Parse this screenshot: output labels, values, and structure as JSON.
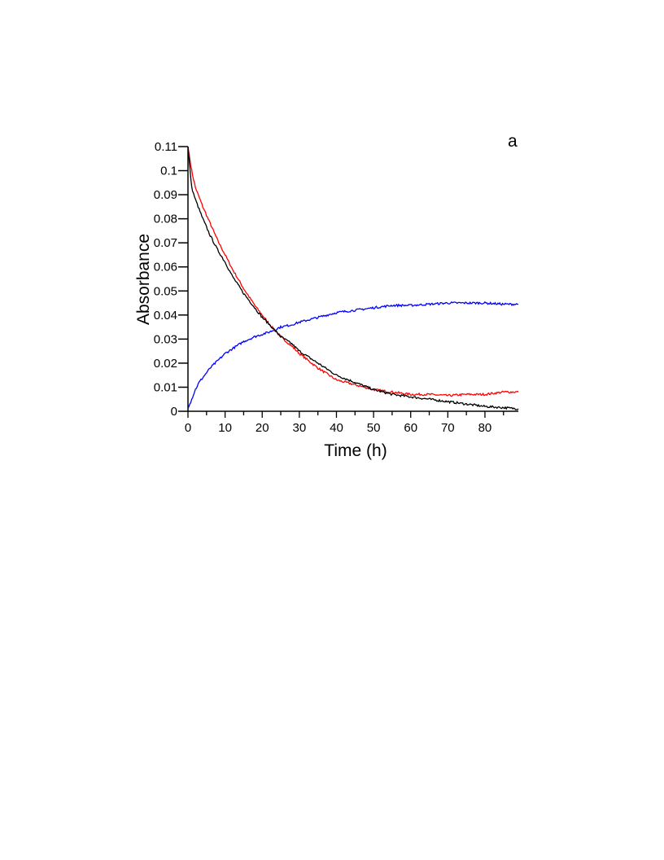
{
  "chart_data": {
    "type": "line",
    "title": "",
    "panel_label": "a",
    "xlabel": "Time (h)",
    "ylabel": "Absorbance",
    "xlim": [
      0,
      89
    ],
    "ylim": [
      0,
      0.11
    ],
    "xticks": [
      0,
      10,
      20,
      30,
      40,
      50,
      60,
      70,
      80
    ],
    "xtick_labels": [
      "0",
      "10",
      "20",
      "30",
      "40",
      "50",
      "60",
      "70",
      "80"
    ],
    "yticks": [
      0,
      0.01,
      0.02,
      0.03,
      0.04,
      0.05,
      0.06,
      0.07,
      0.08,
      0.09,
      0.1,
      0.11
    ],
    "ytick_labels": [
      "0",
      "0.01",
      "0.02",
      "0.03",
      "0.04",
      "0.05",
      "0.06",
      "0.07",
      "0.08",
      "0.09",
      "0.1",
      "0.11"
    ],
    "grid": false,
    "legend": "none",
    "series": [
      {
        "color": "#ff0000",
        "x": [
          0,
          1,
          2,
          4,
          6,
          8,
          10,
          12,
          15,
          18,
          20,
          22,
          25,
          28,
          30,
          35,
          40,
          45,
          50,
          55,
          60,
          65,
          70,
          75,
          80,
          85,
          89
        ],
        "values": [
          0.11,
          0.1,
          0.093,
          0.085,
          0.078,
          0.071,
          0.065,
          0.059,
          0.051,
          0.044,
          0.04,
          0.036,
          0.031,
          0.027,
          0.024,
          0.018,
          0.013,
          0.011,
          0.009,
          0.008,
          0.007,
          0.007,
          0.0065,
          0.007,
          0.007,
          0.008,
          0.008
        ]
      },
      {
        "color": "#000000",
        "x": [
          0,
          1,
          2,
          4,
          6,
          8,
          10,
          12,
          15,
          18,
          20,
          22,
          25,
          28,
          30,
          35,
          40,
          45,
          50,
          55,
          60,
          65,
          70,
          75,
          80,
          85,
          89
        ],
        "values": [
          0.11,
          0.093,
          0.088,
          0.08,
          0.073,
          0.067,
          0.062,
          0.056,
          0.049,
          0.043,
          0.039,
          0.036,
          0.031,
          0.028,
          0.025,
          0.02,
          0.015,
          0.012,
          0.009,
          0.007,
          0.006,
          0.005,
          0.004,
          0.003,
          0.002,
          0.0015,
          0.001
        ]
      },
      {
        "color": "#0000ff",
        "x": [
          0,
          1,
          2,
          3,
          4,
          6,
          8,
          10,
          12,
          15,
          18,
          20,
          22,
          25,
          28,
          30,
          35,
          40,
          45,
          50,
          55,
          60,
          65,
          70,
          75,
          80,
          85,
          89
        ],
        "values": [
          0.001,
          0.005,
          0.009,
          0.012,
          0.014,
          0.018,
          0.021,
          0.024,
          0.026,
          0.029,
          0.031,
          0.032,
          0.033,
          0.035,
          0.036,
          0.037,
          0.039,
          0.041,
          0.042,
          0.043,
          0.044,
          0.044,
          0.0445,
          0.045,
          0.045,
          0.045,
          0.0445,
          0.0445
        ]
      }
    ]
  }
}
